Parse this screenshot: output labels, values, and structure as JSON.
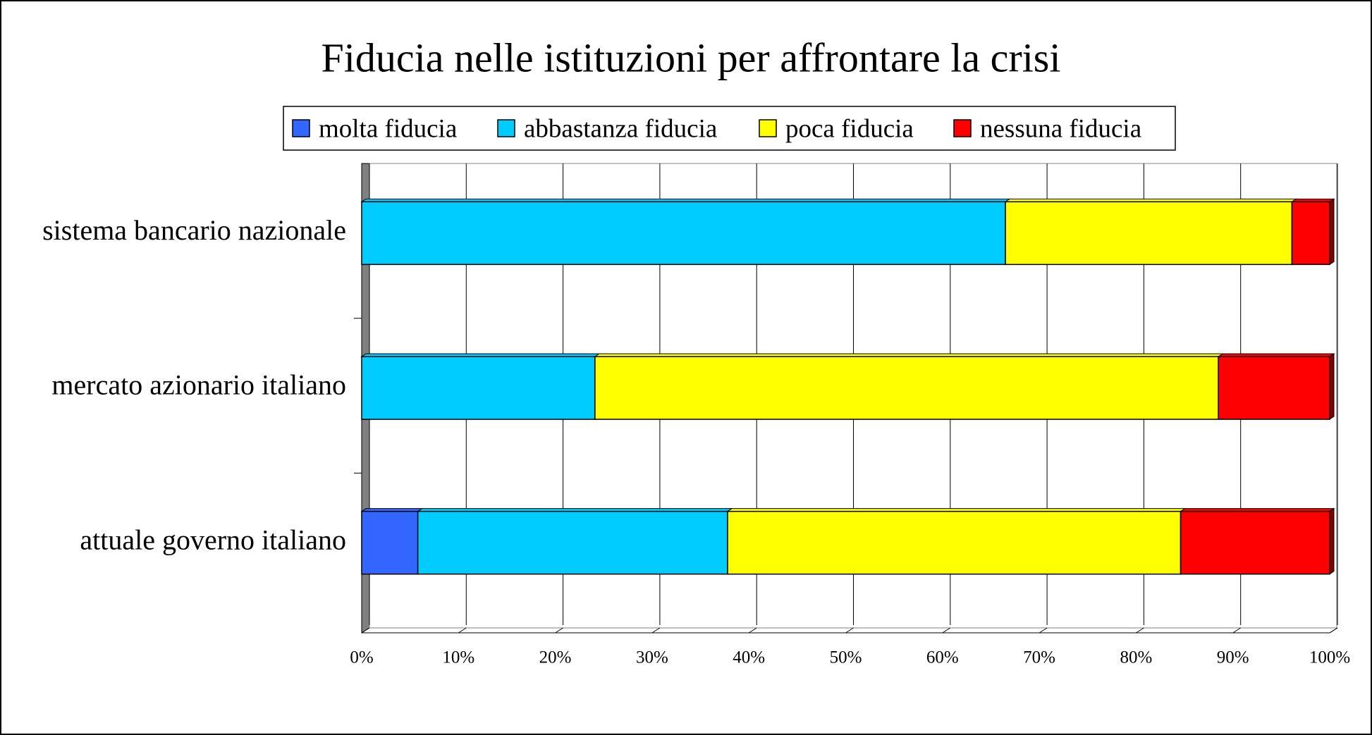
{
  "chart_data": {
    "type": "stacked_bar_horizontal",
    "title": "Fiducia nelle istituzioni per affrontare la crisi",
    "categories": [
      "sistema bancario nazionale",
      "mercato azionario italiano",
      "attuale governo italiano"
    ],
    "series": [
      {
        "name": "molta fiducia",
        "color": "#3366ff",
        "values": [
          0,
          0,
          5.8
        ]
      },
      {
        "name": "abbastanza fiducia",
        "color": "#00ccff",
        "values": [
          66.5,
          24.1,
          32.0
        ]
      },
      {
        "name": "poca fiducia",
        "color": "#ffff00",
        "values": [
          29.6,
          64.4,
          46.8
        ]
      },
      {
        "name": "nessuna fiducia",
        "color": "#ff0000",
        "values": [
          3.9,
          11.5,
          15.4
        ]
      }
    ],
    "xlim": [
      0,
      100
    ],
    "xticks": [
      {
        "value": 0,
        "label": "0%"
      },
      {
        "value": 10,
        "label": "10%"
      },
      {
        "value": 20,
        "label": "20%"
      },
      {
        "value": 30,
        "label": "30%"
      },
      {
        "value": 40,
        "label": "40%"
      },
      {
        "value": 50,
        "label": "50%"
      },
      {
        "value": 60,
        "label": "60%"
      },
      {
        "value": 70,
        "label": "70%"
      },
      {
        "value": 80,
        "label": "80%"
      },
      {
        "value": 90,
        "label": "90%"
      },
      {
        "value": 100,
        "label": "100%"
      }
    ],
    "grid": true,
    "legend": "top"
  }
}
